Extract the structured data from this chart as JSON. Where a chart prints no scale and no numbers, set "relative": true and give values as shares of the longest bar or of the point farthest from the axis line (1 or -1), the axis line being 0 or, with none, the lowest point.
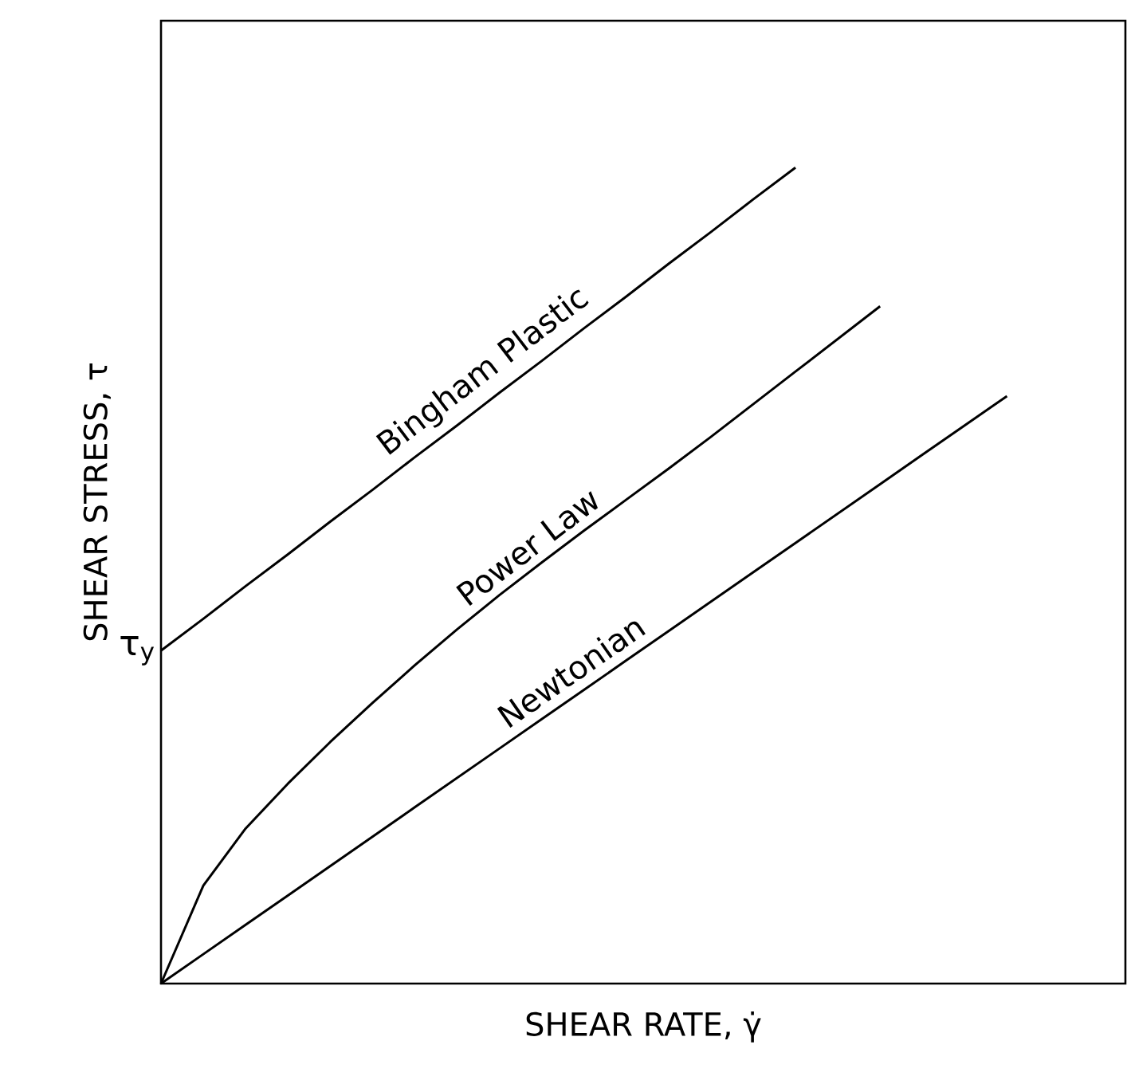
{
  "chart_data": {
    "type": "line",
    "relative": true,
    "xlabel": "SHEAR RATE, γ̇",
    "ylabel": "SHEAR STRESS, τ",
    "categories": [
      null,
      null,
      null,
      null,
      null,
      null,
      null,
      null,
      null,
      null,
      null,
      null,
      null,
      null,
      null,
      null,
      null,
      null,
      null,
      null,
      null
    ],
    "series": [
      {
        "name": "Bingham Plastic",
        "color": "#000000",
        "values": [
          0.408,
          0.447,
          0.487,
          0.526,
          0.566,
          0.605,
          0.645,
          0.684,
          0.724,
          0.763,
          0.803,
          0.842,
          0.882,
          0.921,
          0.961,
          1,
          null,
          null,
          null,
          null,
          null
        ]
      },
      {
        "name": "Power Law",
        "color": "#000000",
        "values": [
          0,
          0.12,
          0.19,
          0.245,
          0.296,
          0.344,
          0.39,
          0.434,
          0.476,
          0.516,
          0.555,
          0.593,
          0.631,
          0.67,
          0.71,
          0.75,
          0.79,
          0.83,
          null,
          null,
          null
        ]
      },
      {
        "name": "Newtonian",
        "color": "#000000",
        "values": [
          0,
          0.036,
          0.072,
          0.108,
          0.144,
          0.18,
          0.216,
          0.252,
          0.288,
          0.324,
          0.36,
          0.396,
          0.432,
          0.468,
          0.504,
          0.54,
          0.576,
          0.612,
          0.648,
          0.684,
          0.72
        ]
      }
    ],
    "annotations": [
      "τ$_{y}$"
    ]
  }
}
